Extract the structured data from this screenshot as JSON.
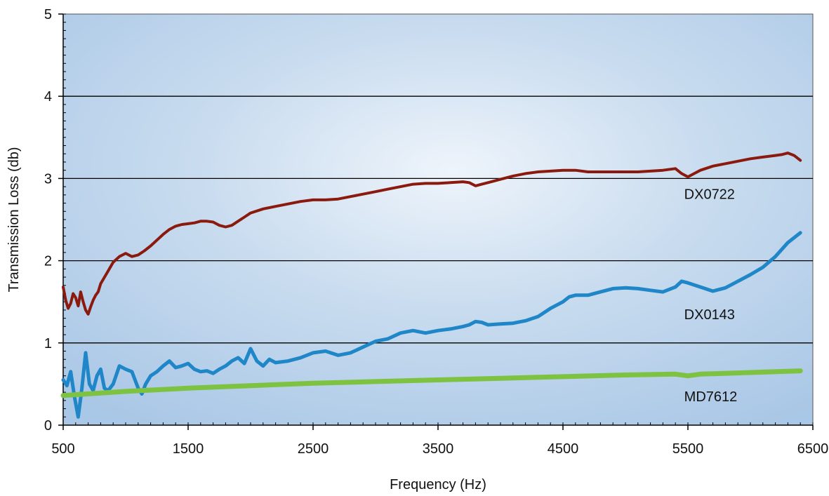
{
  "chart_data": {
    "type": "line",
    "title": "",
    "xlabel": "Frequency (Hz)",
    "ylabel": "Transmission Loss (db)",
    "xlim": [
      500,
      6500
    ],
    "ylim": [
      0,
      5
    ],
    "x_ticks": [
      "500",
      "1500",
      "2500",
      "3500",
      "4500",
      "5500",
      "6500"
    ],
    "y_ticks": [
      "0",
      "1",
      "2",
      "3",
      "4",
      "5"
    ],
    "grid": "horizontal",
    "legend": "inline labels",
    "series": [
      {
        "name": "DX0722",
        "color": "#8b1a0e",
        "x": [
          500,
          520,
          540,
          560,
          580,
          600,
          620,
          640,
          660,
          680,
          700,
          720,
          740,
          760,
          780,
          800,
          850,
          900,
          950,
          1000,
          1050,
          1100,
          1150,
          1200,
          1250,
          1300,
          1350,
          1400,
          1450,
          1500,
          1550,
          1600,
          1650,
          1700,
          1750,
          1800,
          1850,
          1900,
          1950,
          2000,
          2100,
          2200,
          2300,
          2400,
          2500,
          2600,
          2700,
          2800,
          2900,
          3000,
          3100,
          3200,
          3300,
          3400,
          3500,
          3600,
          3700,
          3750,
          3800,
          3850,
          3900,
          4000,
          4100,
          4200,
          4300,
          4400,
          4500,
          4600,
          4700,
          4800,
          4900,
          5000,
          5100,
          5200,
          5300,
          5400,
          5450,
          5500,
          5550,
          5600,
          5700,
          5800,
          5900,
          6000,
          6100,
          6200,
          6250,
          6300,
          6350,
          6400
        ],
        "values": [
          1.68,
          1.52,
          1.42,
          1.48,
          1.6,
          1.55,
          1.45,
          1.62,
          1.5,
          1.4,
          1.35,
          1.44,
          1.52,
          1.58,
          1.62,
          1.72,
          1.85,
          1.98,
          2.05,
          2.09,
          2.05,
          2.07,
          2.12,
          2.18,
          2.25,
          2.32,
          2.38,
          2.42,
          2.44,
          2.45,
          2.46,
          2.48,
          2.48,
          2.47,
          2.43,
          2.41,
          2.43,
          2.48,
          2.53,
          2.58,
          2.63,
          2.66,
          2.69,
          2.72,
          2.74,
          2.74,
          2.75,
          2.78,
          2.81,
          2.84,
          2.87,
          2.9,
          2.93,
          2.94,
          2.94,
          2.95,
          2.96,
          2.95,
          2.91,
          2.93,
          2.95,
          2.99,
          3.03,
          3.06,
          3.08,
          3.09,
          3.1,
          3.1,
          3.08,
          3.08,
          3.08,
          3.08,
          3.08,
          3.09,
          3.1,
          3.12,
          3.06,
          3.02,
          3.06,
          3.1,
          3.15,
          3.18,
          3.21,
          3.24,
          3.26,
          3.28,
          3.29,
          3.31,
          3.28,
          3.22
        ]
      },
      {
        "name": "DX0143",
        "color": "#1f86c8",
        "x": [
          500,
          530,
          560,
          590,
          620,
          650,
          680,
          710,
          740,
          770,
          800,
          830,
          860,
          900,
          950,
          1000,
          1050,
          1100,
          1130,
          1160,
          1200,
          1250,
          1300,
          1350,
          1400,
          1450,
          1500,
          1550,
          1600,
          1650,
          1700,
          1750,
          1800,
          1850,
          1900,
          1950,
          2000,
          2050,
          2100,
          2150,
          2200,
          2300,
          2400,
          2500,
          2600,
          2700,
          2800,
          2900,
          3000,
          3100,
          3200,
          3300,
          3400,
          3500,
          3600,
          3700,
          3750,
          3800,
          3850,
          3900,
          4000,
          4100,
          4200,
          4300,
          4400,
          4500,
          4550,
          4600,
          4700,
          4800,
          4900,
          5000,
          5100,
          5200,
          5300,
          5400,
          5450,
          5500,
          5600,
          5700,
          5800,
          5900,
          6000,
          6100,
          6200,
          6300,
          6400
        ],
        "values": [
          0.55,
          0.48,
          0.65,
          0.35,
          0.1,
          0.45,
          0.88,
          0.5,
          0.42,
          0.6,
          0.68,
          0.45,
          0.42,
          0.5,
          0.72,
          0.68,
          0.65,
          0.45,
          0.38,
          0.5,
          0.6,
          0.65,
          0.72,
          0.78,
          0.7,
          0.72,
          0.75,
          0.68,
          0.65,
          0.66,
          0.63,
          0.68,
          0.72,
          0.78,
          0.82,
          0.75,
          0.93,
          0.78,
          0.72,
          0.8,
          0.76,
          0.78,
          0.82,
          0.88,
          0.9,
          0.85,
          0.88,
          0.95,
          1.02,
          1.05,
          1.12,
          1.15,
          1.12,
          1.15,
          1.17,
          1.2,
          1.22,
          1.26,
          1.25,
          1.22,
          1.23,
          1.24,
          1.27,
          1.32,
          1.42,
          1.5,
          1.56,
          1.58,
          1.58,
          1.62,
          1.66,
          1.67,
          1.66,
          1.64,
          1.62,
          1.68,
          1.75,
          1.73,
          1.68,
          1.63,
          1.67,
          1.75,
          1.83,
          1.92,
          2.05,
          2.22,
          2.34
        ]
      },
      {
        "name": "MD7612",
        "color": "#7ec242",
        "x": [
          500,
          1000,
          1500,
          2000,
          2500,
          3000,
          3500,
          4000,
          4500,
          5000,
          5400,
          5500,
          5600,
          6000,
          6400
        ],
        "values": [
          0.36,
          0.41,
          0.45,
          0.48,
          0.51,
          0.53,
          0.55,
          0.57,
          0.59,
          0.61,
          0.62,
          0.6,
          0.62,
          0.64,
          0.66
        ]
      }
    ]
  }
}
